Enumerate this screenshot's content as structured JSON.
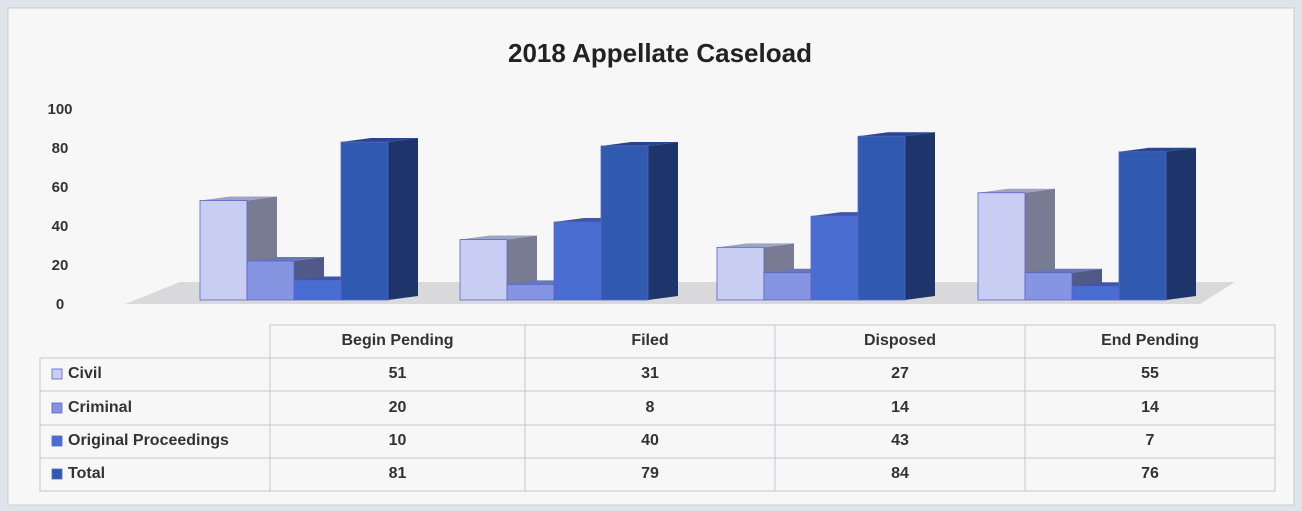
{
  "chart_data": {
    "type": "bar3d",
    "title": "2018 Appellate Caseload",
    "categories": [
      "Begin  Pending",
      "Filed",
      "Disposed",
      "End Pending"
    ],
    "series": [
      {
        "name": "Civil",
        "color": "#c8cdf4",
        "values": [
          51,
          31,
          27,
          55
        ]
      },
      {
        "name": "Criminal",
        "color": "#8595e2",
        "values": [
          20,
          8,
          14,
          14
        ]
      },
      {
        "name": "Original Proceedings",
        "color": "#4a6dd2",
        "values": [
          10,
          40,
          43,
          7
        ]
      },
      {
        "name": "Total",
        "color": "#3059b0",
        "values": [
          81,
          79,
          84,
          76
        ]
      }
    ],
    "ylim": [
      0,
      100
    ],
    "yticks": [
      0,
      20,
      40,
      60,
      80,
      100
    ],
    "grid": false
  }
}
